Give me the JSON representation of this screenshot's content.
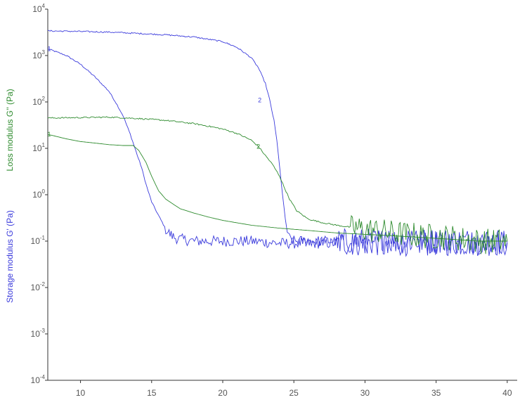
{
  "chart_data": {
    "type": "line",
    "xlim": [
      7.7,
      40.7
    ],
    "ylim_exponents": [
      -4,
      4
    ],
    "y_scale": "log",
    "grid": false,
    "x_ticks": [
      {
        "value": 10,
        "label": "10"
      },
      {
        "value": 15,
        "label": "15"
      },
      {
        "value": 20,
        "label": "20"
      },
      {
        "value": 25,
        "label": "25"
      },
      {
        "value": 30,
        "label": "30"
      },
      {
        "value": 35,
        "label": "35"
      },
      {
        "value": 40,
        "label": "40"
      }
    ],
    "y_ticks": [
      {
        "exp": 4,
        "base": "10",
        "sup": "4"
      },
      {
        "exp": 3,
        "base": "10",
        "sup": "3"
      },
      {
        "exp": 2,
        "base": "10",
        "sup": "2"
      },
      {
        "exp": 1,
        "base": "10",
        "sup": "1"
      },
      {
        "exp": 0,
        "base": "10",
        "sup": "0"
      },
      {
        "exp": -1,
        "base": "10",
        "sup": "-1"
      },
      {
        "exp": -2,
        "base": "10",
        "sup": "-2"
      },
      {
        "exp": -3,
        "base": "10",
        "sup": "-3"
      },
      {
        "exp": -4,
        "base": "10",
        "sup": "-4"
      }
    ],
    "ylabel_loss": "Loss modulus G'' (Pa)",
    "ylabel_storage": "Storage modulus G' (Pa)",
    "colors": {
      "storage": "#3b3bdc",
      "storage_dark": "#1a1a8c",
      "loss": "#2e8b2e",
      "axis": "#333333"
    },
    "series": [
      {
        "id": "storage-1",
        "color": "#3b3bdc",
        "noise": true,
        "x": [
          7.7,
          9,
          10,
          11,
          12,
          12.5,
          13,
          13.5,
          14,
          14.3,
          14.6,
          15,
          15.5,
          16,
          16.3,
          16.6,
          17,
          17.5,
          18,
          20,
          22,
          24,
          26,
          28,
          30,
          32,
          34,
          36,
          38,
          40
        ],
        "y": [
          1400,
          1000,
          650,
          350,
          170,
          95,
          50,
          20,
          7,
          3.8,
          1.7,
          0.7,
          0.35,
          0.18,
          0.14,
          0.12,
          0.11,
          0.105,
          0.1,
          0.1,
          0.1,
          0.09,
          0.09,
          0.09,
          0.09,
          0.09,
          0.09,
          0.09,
          0.09,
          0.09
        ],
        "marker": {
          "text": "1",
          "x": 7.8,
          "y": 1400
        }
      },
      {
        "id": "storage-2",
        "color": "#3b3bdc",
        "noise": true,
        "x": [
          7.7,
          10,
          12,
          14,
          16,
          18,
          20,
          21,
          22,
          22.5,
          23,
          23.3,
          23.6,
          23.8,
          24.0,
          24.2,
          24.4,
          24.6,
          25,
          26,
          28,
          30,
          32,
          34,
          36,
          38,
          40
        ],
        "y": [
          3400,
          3300,
          3200,
          3000,
          2800,
          2500,
          2000,
          1500,
          900,
          550,
          250,
          110,
          40,
          15,
          4,
          1.0,
          0.3,
          0.12,
          0.1,
          0.1,
          0.1,
          0.1,
          0.1,
          0.1,
          0.1,
          0.1,
          0.1
        ],
        "marker": {
          "text": "2",
          "x": 22.6,
          "y": 110
        }
      },
      {
        "id": "loss-1",
        "color": "#2e8b2e",
        "noise": false,
        "x": [
          7.7,
          9,
          10,
          11,
          12,
          13,
          13.7,
          14.1,
          14.6,
          15,
          15.5,
          16,
          17,
          18,
          19,
          20,
          22,
          24,
          26,
          28,
          30,
          32,
          34,
          36,
          38,
          40
        ],
        "y": [
          20,
          16,
          14,
          13,
          12,
          11.5,
          11.5,
          9,
          5,
          2.5,
          1.2,
          0.8,
          0.5,
          0.4,
          0.33,
          0.28,
          0.22,
          0.19,
          0.17,
          0.15,
          0.14,
          0.13,
          0.12,
          0.11,
          0.1,
          0.1
        ],
        "marker": {
          "text": "1",
          "x": 7.8,
          "y": 20
        }
      },
      {
        "id": "loss-2",
        "color": "#2e8b2e",
        "noise": true,
        "x": [
          7.7,
          10,
          12,
          14,
          16,
          18,
          19,
          20,
          21,
          22,
          22.5,
          23,
          23.5,
          24,
          24.3,
          24.7,
          25.2,
          26,
          27,
          28,
          30,
          32,
          34,
          36,
          38,
          40
        ],
        "y": [
          45,
          46,
          47,
          44,
          40,
          34,
          30,
          26,
          21,
          15,
          11,
          7,
          4.5,
          2.5,
          1.5,
          0.8,
          0.45,
          0.3,
          0.25,
          0.22,
          0.18,
          0.15,
          0.13,
          0.12,
          0.1,
          0.1
        ],
        "marker": {
          "text": "2",
          "x": 22.5,
          "y": 11
        }
      }
    ]
  }
}
